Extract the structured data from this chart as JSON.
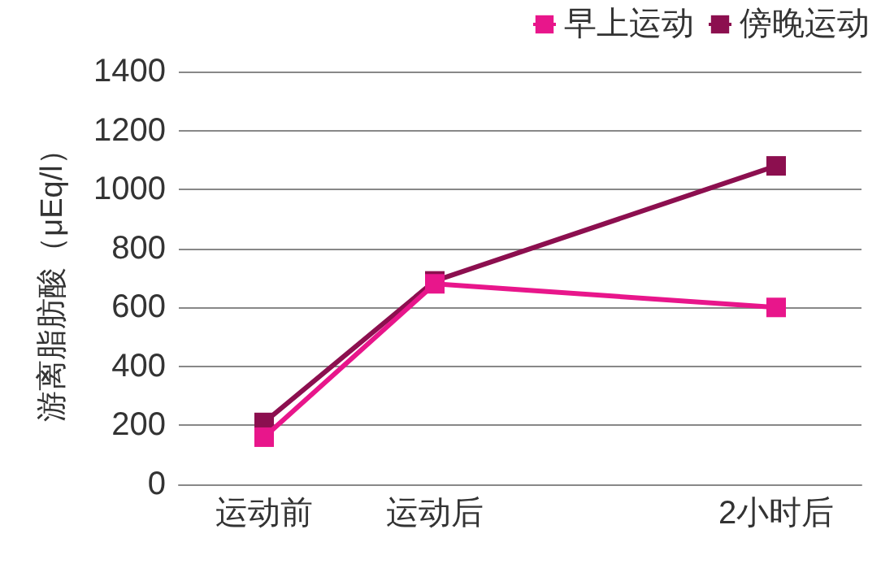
{
  "chart_data": {
    "type": "line",
    "ylabel": "游离脂肪酸（μEq/l）",
    "categories": [
      "运动前",
      "运动后",
      null,
      "2小时后"
    ],
    "series": [
      {
        "name": "早上运动",
        "color": "#e8168b",
        "values": [
          160,
          680,
          null,
          600
        ]
      },
      {
        "name": "傍晚运动",
        "color": "#8c0f4f",
        "values": [
          210,
          690,
          null,
          1080
        ]
      }
    ],
    "ylim": [
      0,
      1400
    ],
    "yticks": [
      0,
      200,
      400,
      600,
      800,
      1000,
      1200,
      1400
    ],
    "grid": "y",
    "legend": "top right",
    "marker": "square",
    "line_style": "solid"
  }
}
